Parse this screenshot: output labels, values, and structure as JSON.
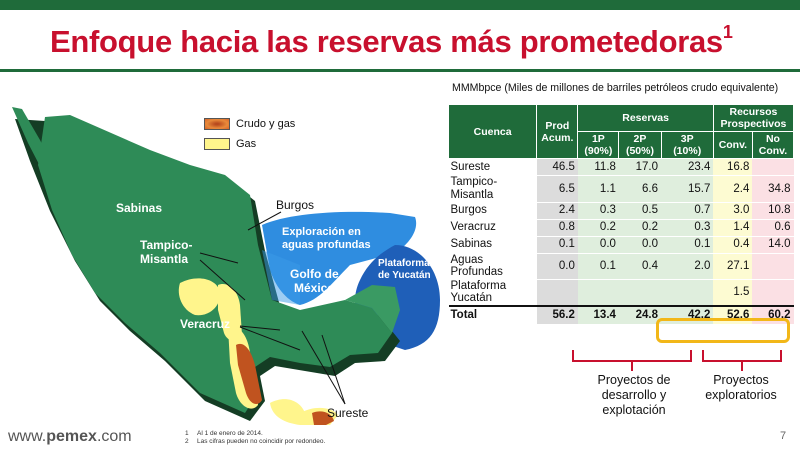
{
  "title": "Enfoque hacia las reservas más prometedoras",
  "title_sup": "1",
  "unit_note": "MMMbpce (Miles de millones de barriles petróleos crudo equivalente)",
  "legend": {
    "crudo": "Crudo y gas",
    "gas": "Gas"
  },
  "map_labels": {
    "sabinas": "Sabinas",
    "burgos": "Burgos",
    "tampico": "Tampico-\nMisantla",
    "exploracion": "Exploración en\naguas profundas",
    "golfo": "Golfo de\nMéxico",
    "plataforma": "Plataforma\nde Yucatán",
    "veracruz": "Veracruz",
    "sureste": "Sureste"
  },
  "table": {
    "headers": {
      "cuenca": "Cuenca",
      "prod": "Prod\nAcum.",
      "reservas": "Reservas",
      "recursos": "Recursos\nProspectivos",
      "p1": "1P\n(90%)",
      "p2": "2P\n(50%)",
      "p3": "3P\n(10%)",
      "conv": "Conv.",
      "noconv": "No\nConv."
    },
    "rows": [
      {
        "name": "Sureste",
        "prod": "46.5",
        "p1": "11.8",
        "p2": "17.0",
        "p3": "23.4",
        "conv": "16.8",
        "noconv": ""
      },
      {
        "name": "Tampico-\nMisantla",
        "prod": "6.5",
        "p1": "1.1",
        "p2": "6.6",
        "p3": "15.7",
        "conv": "2.4",
        "noconv": "34.8"
      },
      {
        "name": "Burgos",
        "prod": "2.4",
        "p1": "0.3",
        "p2": "0.5",
        "p3": "0.7",
        "conv": "3.0",
        "noconv": "10.8"
      },
      {
        "name": "Veracruz",
        "prod": "0.8",
        "p1": "0.2",
        "p2": "0.2",
        "p3": "0.3",
        "conv": "1.4",
        "noconv": "0.6"
      },
      {
        "name": "Sabinas",
        "prod": "0.1",
        "p1": "0.0",
        "p2": "0.0",
        "p3": "0.1",
        "conv": "0.4",
        "noconv": "14.0"
      },
      {
        "name": "Aguas\nProfundas",
        "prod": "0.0",
        "p1": "0.1",
        "p2": "0.4",
        "p3": "2.0",
        "conv": "27.1",
        "noconv": ""
      },
      {
        "name": "Plataforma\nYucatán",
        "prod": "",
        "p1": "",
        "p2": "",
        "p3": "",
        "conv": "1.5",
        "noconv": ""
      }
    ],
    "total": {
      "name": "Total",
      "prod": "56.2",
      "p1": "13.4",
      "p2": "24.8",
      "p3": "42.2",
      "conv": "52.6",
      "noconv": "60.2"
    }
  },
  "brackets": {
    "desarrollo": "Proyectos de\ndesarrollo y\nexplotación",
    "exploratorios": "Proyectos\nexploratorios"
  },
  "footer": {
    "url_prefix": "www.",
    "url_brand": "pemex",
    "url_suffix": ".com",
    "footnotes": [
      {
        "n": "1",
        "text": "Al 1 de enero de 2014."
      },
      {
        "n": "2",
        "text": "Las cifras pueden no coincidir por redondeo."
      }
    ],
    "page": "7"
  },
  "colors": {
    "brand_green": "#1f6b3a",
    "title_red": "#c8102e",
    "highlight": "#f2b718",
    "land": "#2e8b57",
    "sea_light": "#2f8de0",
    "sea_dark": "#1f5fb8"
  }
}
